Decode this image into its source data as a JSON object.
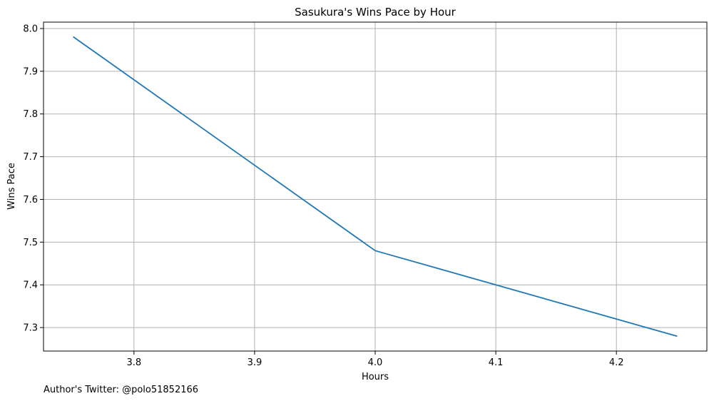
{
  "chart_data": {
    "type": "line",
    "title": "Sasukura's Wins Pace by Hour",
    "xlabel": "Hours",
    "ylabel": "Wins Pace",
    "xlim": [
      3.725,
      4.275
    ],
    "ylim": [
      7.245,
      8.015
    ],
    "xticks": [
      "3.8",
      "3.9",
      "4.0",
      "4.1",
      "4.2"
    ],
    "yticks": [
      "7.3",
      "7.4",
      "7.5",
      "7.6",
      "7.7",
      "7.8",
      "7.9",
      "8.0"
    ],
    "grid": true,
    "series": [
      {
        "color": "#1f77b4",
        "x": [
          3.75,
          4.0,
          4.25
        ],
        "y": [
          7.98,
          7.48,
          7.28
        ]
      }
    ]
  },
  "footnote": "Author's Twitter: @polo51852166"
}
